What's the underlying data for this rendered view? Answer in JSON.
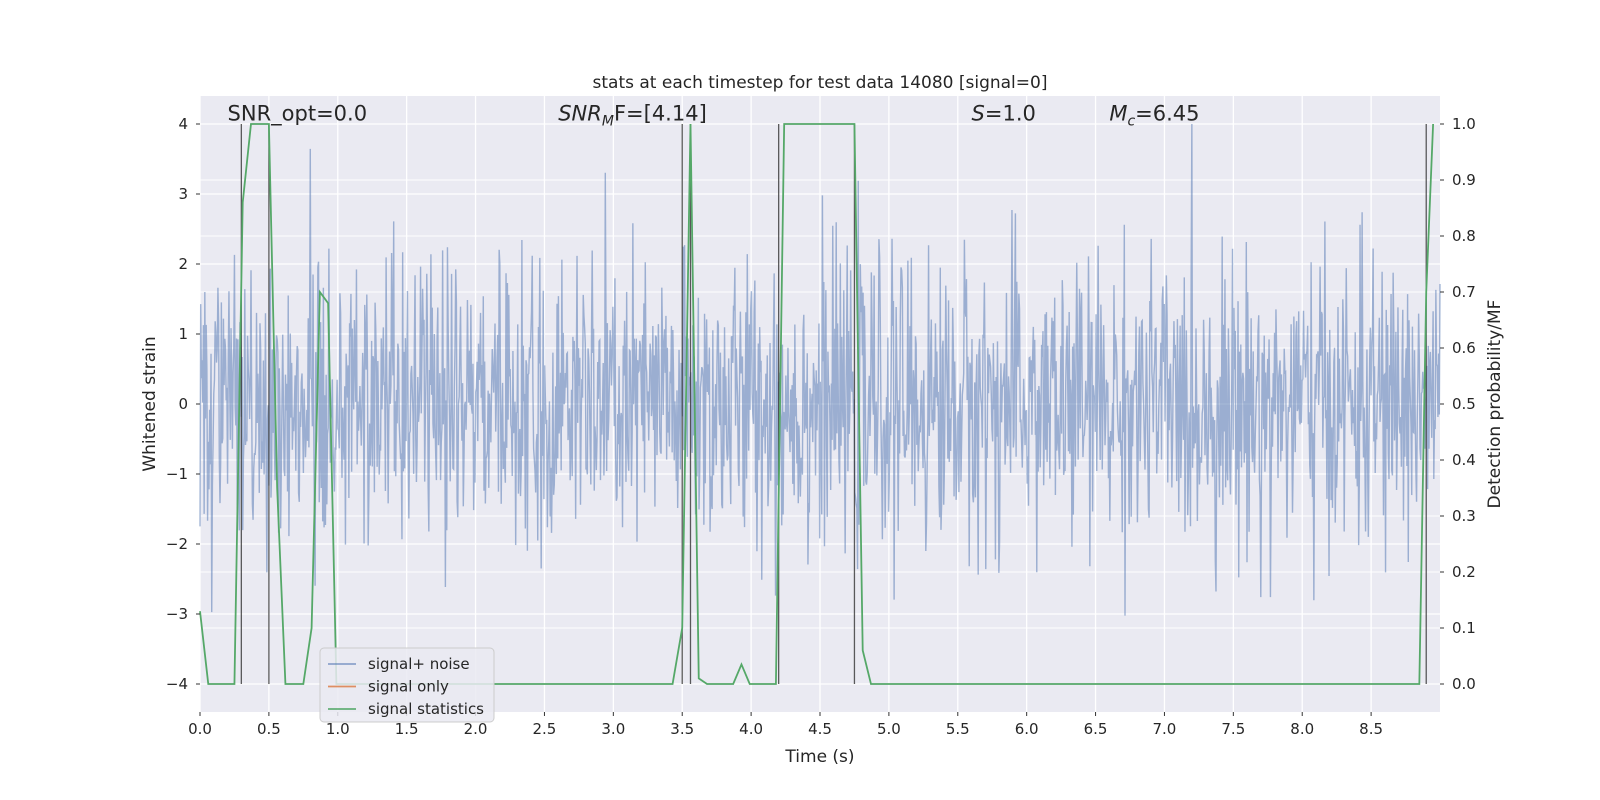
{
  "chart_data": {
    "type": "line",
    "title": "stats at each timestep for test data 14080 [signal=0]",
    "xlabel": "Time (s)",
    "ylabel_left": "Whitened strain",
    "ylabel_right": "Detection probability/MF",
    "xlim": [
      0.0,
      9.0
    ],
    "ylim_left": [
      -4.4,
      4.4
    ],
    "ylim_right": [
      -0.05,
      1.05
    ],
    "x_ticks": [
      "0.0",
      "0.5",
      "1.0",
      "1.5",
      "2.0",
      "2.5",
      "3.0",
      "3.5",
      "4.0",
      "4.5",
      "5.0",
      "5.5",
      "6.0",
      "6.5",
      "7.0",
      "7.5",
      "8.0",
      "8.5"
    ],
    "x_tick_values": [
      0.0,
      0.5,
      1.0,
      1.5,
      2.0,
      2.5,
      3.0,
      3.5,
      4.0,
      4.5,
      5.0,
      5.5,
      6.0,
      6.5,
      7.0,
      7.5,
      8.0,
      8.5
    ],
    "y_left_ticks": [
      "4",
      "3",
      "2",
      "1",
      "0",
      "−1",
      "−2",
      "−3",
      "−4"
    ],
    "y_left_tick_values": [
      4,
      3,
      2,
      1,
      0,
      -1,
      -2,
      -3,
      -4
    ],
    "y_right_ticks": [
      "1.0",
      "0.9",
      "0.8",
      "0.7",
      "0.6",
      "0.5",
      "0.4",
      "0.3",
      "0.2",
      "0.1",
      "0.0"
    ],
    "y_right_tick_values": [
      1.0,
      0.9,
      0.8,
      0.7,
      0.6,
      0.5,
      0.4,
      0.3,
      0.2,
      0.1,
      0.0
    ],
    "grid": true,
    "legend_position": "lower-left",
    "annotations": [
      {
        "text": "SNR_opt=0.0",
        "x": 0.2,
        "y": 4.05
      },
      {
        "text": "SNR",
        "sub": "M",
        "suffix": "F=[4.14]",
        "italic_prefix": true,
        "x": 2.6,
        "y": 4.05
      },
      {
        "text": "S",
        "suffix": "=1.0",
        "italic_prefix": true,
        "x": 5.6,
        "y": 4.05
      },
      {
        "text": "M",
        "sub": "c",
        "suffix": "=6.45",
        "italic_prefix": true,
        "x": 6.6,
        "y": 4.05
      }
    ],
    "vertical_markers": [
      0.3,
      0.5,
      3.5,
      3.56,
      4.2,
      4.75,
      8.9
    ],
    "series": [
      {
        "name": "signal+ noise",
        "color": "#4c72b0",
        "kind": "noise",
        "sigma": 1.0,
        "n_points": 1800,
        "seed": 14080
      },
      {
        "name": "signal only",
        "color": "#dd8452",
        "kind": "line",
        "x": [],
        "y": []
      },
      {
        "name": "signal statistics",
        "color": "#55a868",
        "axis": "right",
        "kind": "line",
        "x": [
          0.0,
          0.06,
          0.12,
          0.18,
          0.25,
          0.31,
          0.37,
          0.43,
          0.5,
          0.56,
          0.62,
          0.68,
          0.75,
          0.81,
          0.87,
          0.93,
          0.99,
          1.05,
          1.12,
          1.5,
          2.0,
          2.5,
          3.0,
          3.43,
          3.5,
          3.56,
          3.62,
          3.68,
          3.75,
          3.81,
          3.87,
          3.93,
          3.99,
          4.05,
          4.12,
          4.18,
          4.24,
          4.3,
          4.4,
          4.5,
          4.6,
          4.7,
          4.75,
          4.81,
          4.87,
          4.93,
          5.0,
          5.5,
          6.0,
          6.5,
          7.0,
          7.5,
          8.0,
          8.5,
          8.85,
          8.9,
          8.95
        ],
        "y": [
          0.13,
          0.0,
          0.0,
          0.0,
          0.0,
          0.86,
          1.0,
          1.0,
          1.0,
          0.35,
          0.0,
          0.0,
          0.0,
          0.1,
          0.7,
          0.68,
          0.0,
          0.0,
          0.0,
          0.0,
          0.0,
          0.0,
          0.0,
          0.0,
          0.1,
          1.0,
          0.01,
          0.0,
          0.0,
          0.0,
          0.0,
          0.035,
          0.0,
          0.0,
          0.0,
          0.0,
          1.0,
          1.0,
          1.0,
          1.0,
          1.0,
          1.0,
          1.0,
          0.06,
          0.0,
          0.0,
          0.0,
          0.0,
          0.0,
          0.0,
          0.0,
          0.0,
          0.0,
          0.0,
          0.0,
          0.7,
          1.0
        ]
      }
    ]
  }
}
